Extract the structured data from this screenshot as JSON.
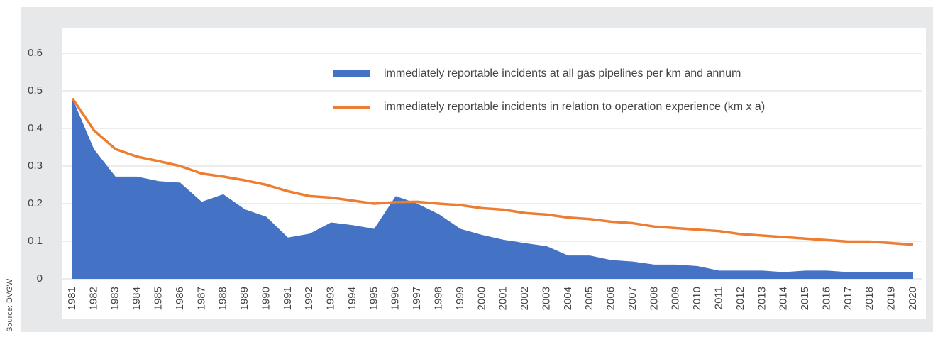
{
  "chart_data": {
    "type": "area_line",
    "categories": [
      "1981",
      "1982",
      "1983",
      "1984",
      "1985",
      "1986",
      "1987",
      "1988",
      "1989",
      "1990",
      "1991",
      "1992",
      "1993",
      "1994",
      "1995",
      "1996",
      "1997",
      "1998",
      "1999",
      "2000",
      "2001",
      "2002",
      "2003",
      "2004",
      "2005",
      "2006",
      "2007",
      "2008",
      "2009",
      "2010",
      "2011",
      "2012",
      "2013",
      "2014",
      "2015",
      "2016",
      "2017",
      "2018",
      "2019",
      "2020"
    ],
    "series": [
      {
        "name": "immediately reportable incidents at all gas pipelines per km and annum",
        "color": "#4472c4",
        "values": [
          0.48,
          0.345,
          0.272,
          0.272,
          0.26,
          0.256,
          0.205,
          0.225,
          0.185,
          0.165,
          0.11,
          0.12,
          0.15,
          0.143,
          0.133,
          0.22,
          0.2,
          0.172,
          0.133,
          0.117,
          0.104,
          0.095,
          0.087,
          0.062,
          0.062,
          0.05,
          0.046,
          0.038,
          0.038,
          0.034,
          0.022,
          0.022,
          0.022,
          0.018,
          0.022,
          0.022,
          0.018,
          0.018,
          0.018,
          0.018
        ]
      },
      {
        "name": "immediately reportable incidents in relation to operation experience (km x a)",
        "color": "#ed7d31",
        "values": [
          0.48,
          0.395,
          0.345,
          0.325,
          0.313,
          0.3,
          0.28,
          0.272,
          0.262,
          0.25,
          0.233,
          0.22,
          0.216,
          0.208,
          0.2,
          0.204,
          0.205,
          0.2,
          0.196,
          0.188,
          0.184,
          0.175,
          0.171,
          0.163,
          0.159,
          0.152,
          0.148,
          0.139,
          0.135,
          0.131,
          0.127,
          0.119,
          0.115,
          0.111,
          0.107,
          0.103,
          0.099,
          0.099,
          0.095,
          0.091
        ]
      }
    ],
    "ylim": [
      0,
      0.6
    ],
    "yticks": [
      0,
      0.1,
      0.2,
      0.3,
      0.4,
      0.5,
      0.6
    ],
    "grid": true,
    "source": "Source: DVGW"
  }
}
